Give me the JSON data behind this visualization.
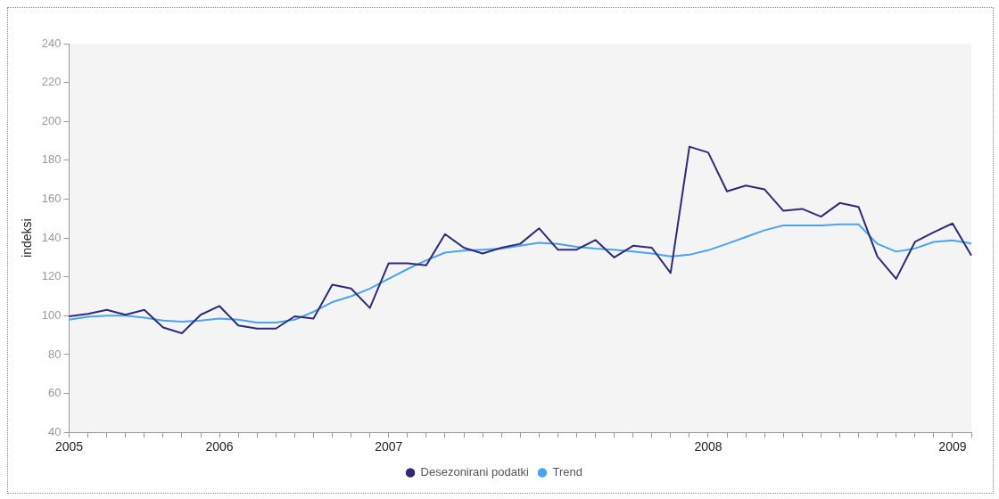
{
  "chart_data": {
    "type": "line",
    "ylabel": "indeksi",
    "categories": [
      "2005",
      null,
      null,
      null,
      null,
      null,
      null,
      null,
      "2006",
      null,
      null,
      null,
      null,
      null,
      null,
      null,
      null,
      "2007",
      null,
      null,
      null,
      null,
      null,
      null,
      null,
      null,
      null,
      null,
      null,
      null,
      null,
      null,
      null,
      null,
      "2008",
      null,
      null,
      null,
      null,
      null,
      null,
      null,
      null,
      null,
      null,
      null,
      null,
      "2009",
      null
    ],
    "series": [
      {
        "name": "Desezonirani podatki",
        "color": "#2e2a78",
        "values": [
          99.7,
          101,
          103,
          100.5,
          103,
          94,
          91,
          100.5,
          105,
          95,
          93.4,
          93.4,
          99.7,
          98.6,
          116,
          114,
          104,
          127,
          127,
          126,
          142,
          135,
          132,
          135,
          137,
          145,
          134,
          134,
          139,
          130,
          136,
          135,
          122,
          187,
          184,
          164,
          167,
          165,
          154,
          155,
          151,
          158,
          156,
          130.5,
          119,
          138,
          143,
          147.5,
          131
        ]
      },
      {
        "name": "Trend",
        "color": "#4aa3ee",
        "values": [
          98,
          99.5,
          100,
          100,
          99,
          97.5,
          97,
          97.5,
          98.5,
          98,
          96.5,
          96.5,
          98,
          102,
          107,
          110,
          114,
          119,
          124,
          128.5,
          132.5,
          133.5,
          134,
          134.5,
          136,
          137.5,
          137,
          135.5,
          134.5,
          134,
          133,
          132,
          130.5,
          131.4,
          133.7,
          137,
          140.5,
          144,
          146.5,
          146.5,
          146.5,
          147,
          147,
          137,
          133,
          134.6,
          138,
          138.8,
          137.2
        ]
      }
    ],
    "ylim": [
      40,
      240
    ],
    "yticks": [
      40,
      60,
      80,
      100,
      120,
      140,
      160,
      180,
      200,
      220,
      240
    ],
    "grid": false,
    "legend": "bottom",
    "marker": "none",
    "line_style": "solid"
  }
}
